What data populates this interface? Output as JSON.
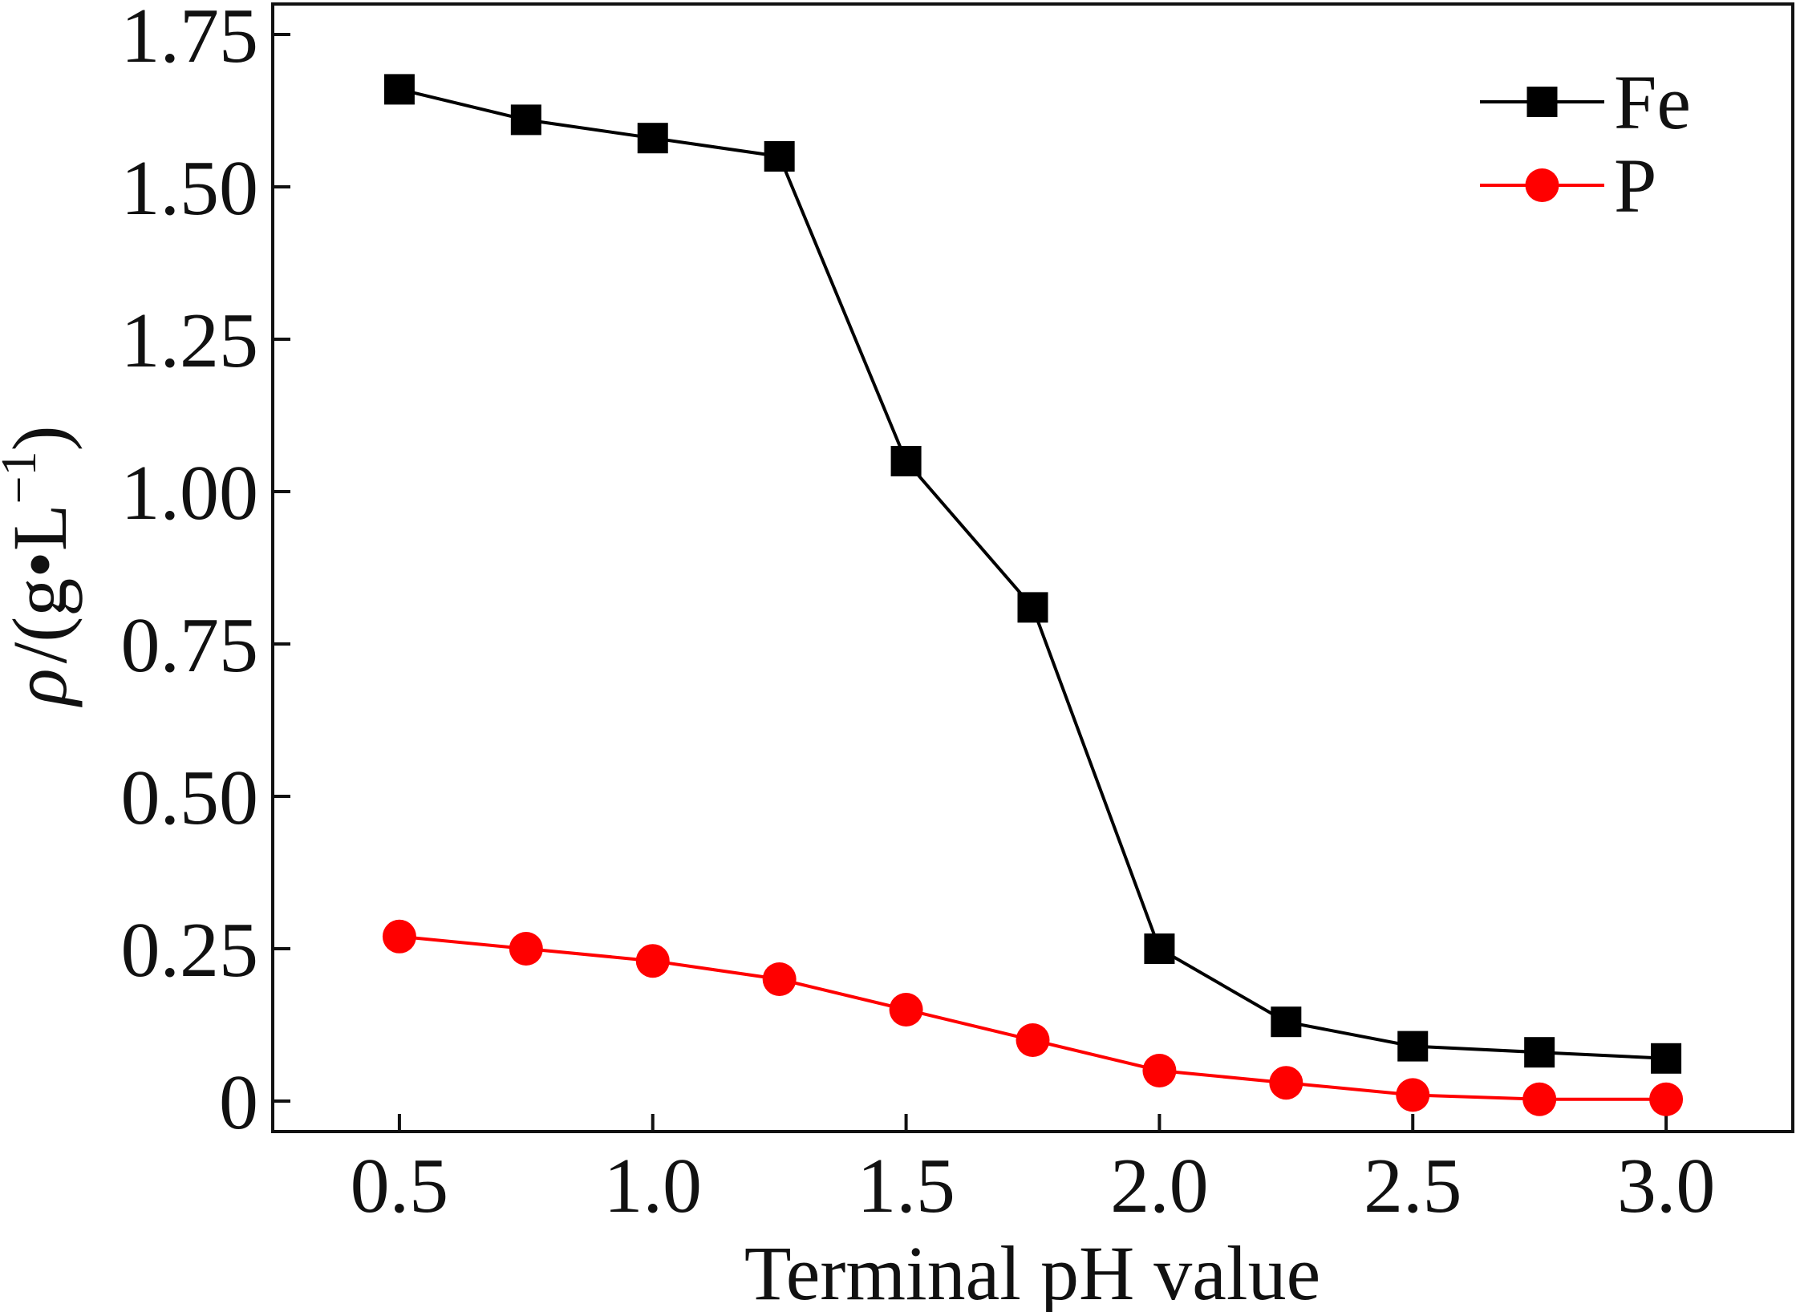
{
  "chart_data": {
    "type": "line",
    "title": "",
    "xlabel": "Terminal pH value",
    "ylabel": {
      "rho": "ρ",
      "units": "/(g•L",
      "superscript": "−1",
      "close": ")"
    },
    "xlim": [
      0.25,
      3.25
    ],
    "ylim": [
      -0.05,
      1.8
    ],
    "x_ticks": [
      {
        "value": 0.5,
        "label": "0.5"
      },
      {
        "value": 1.0,
        "label": "1.0"
      },
      {
        "value": 1.5,
        "label": "1.5"
      },
      {
        "value": 2.0,
        "label": "2.0"
      },
      {
        "value": 2.5,
        "label": "2.5"
      },
      {
        "value": 3.0,
        "label": "3.0"
      }
    ],
    "y_ticks": [
      {
        "value": 0,
        "label": "0"
      },
      {
        "value": 0.25,
        "label": "0.25"
      },
      {
        "value": 0.5,
        "label": "0.50"
      },
      {
        "value": 0.75,
        "label": "0.75"
      },
      {
        "value": 1.0,
        "label": "1.00"
      },
      {
        "value": 1.25,
        "label": "1.25"
      },
      {
        "value": 1.5,
        "label": "1.50"
      },
      {
        "value": 1.75,
        "label": "1.75"
      }
    ],
    "grid": false,
    "legend_position": "top-right",
    "x": [
      0.5,
      0.75,
      1.0,
      1.25,
      1.5,
      1.75,
      2.0,
      2.25,
      2.5,
      2.75,
      3.0
    ],
    "series": [
      {
        "name": "Fe",
        "color": "#000000",
        "marker": "square",
        "values": [
          1.66,
          1.61,
          1.58,
          1.55,
          1.05,
          0.81,
          0.25,
          0.13,
          0.09,
          0.08,
          0.07
        ]
      },
      {
        "name": "P",
        "color": "#ff0000",
        "marker": "circle",
        "values": [
          0.27,
          0.25,
          0.23,
          0.2,
          0.15,
          0.1,
          0.05,
          0.03,
          0.01,
          0.003,
          0.003
        ]
      }
    ]
  }
}
